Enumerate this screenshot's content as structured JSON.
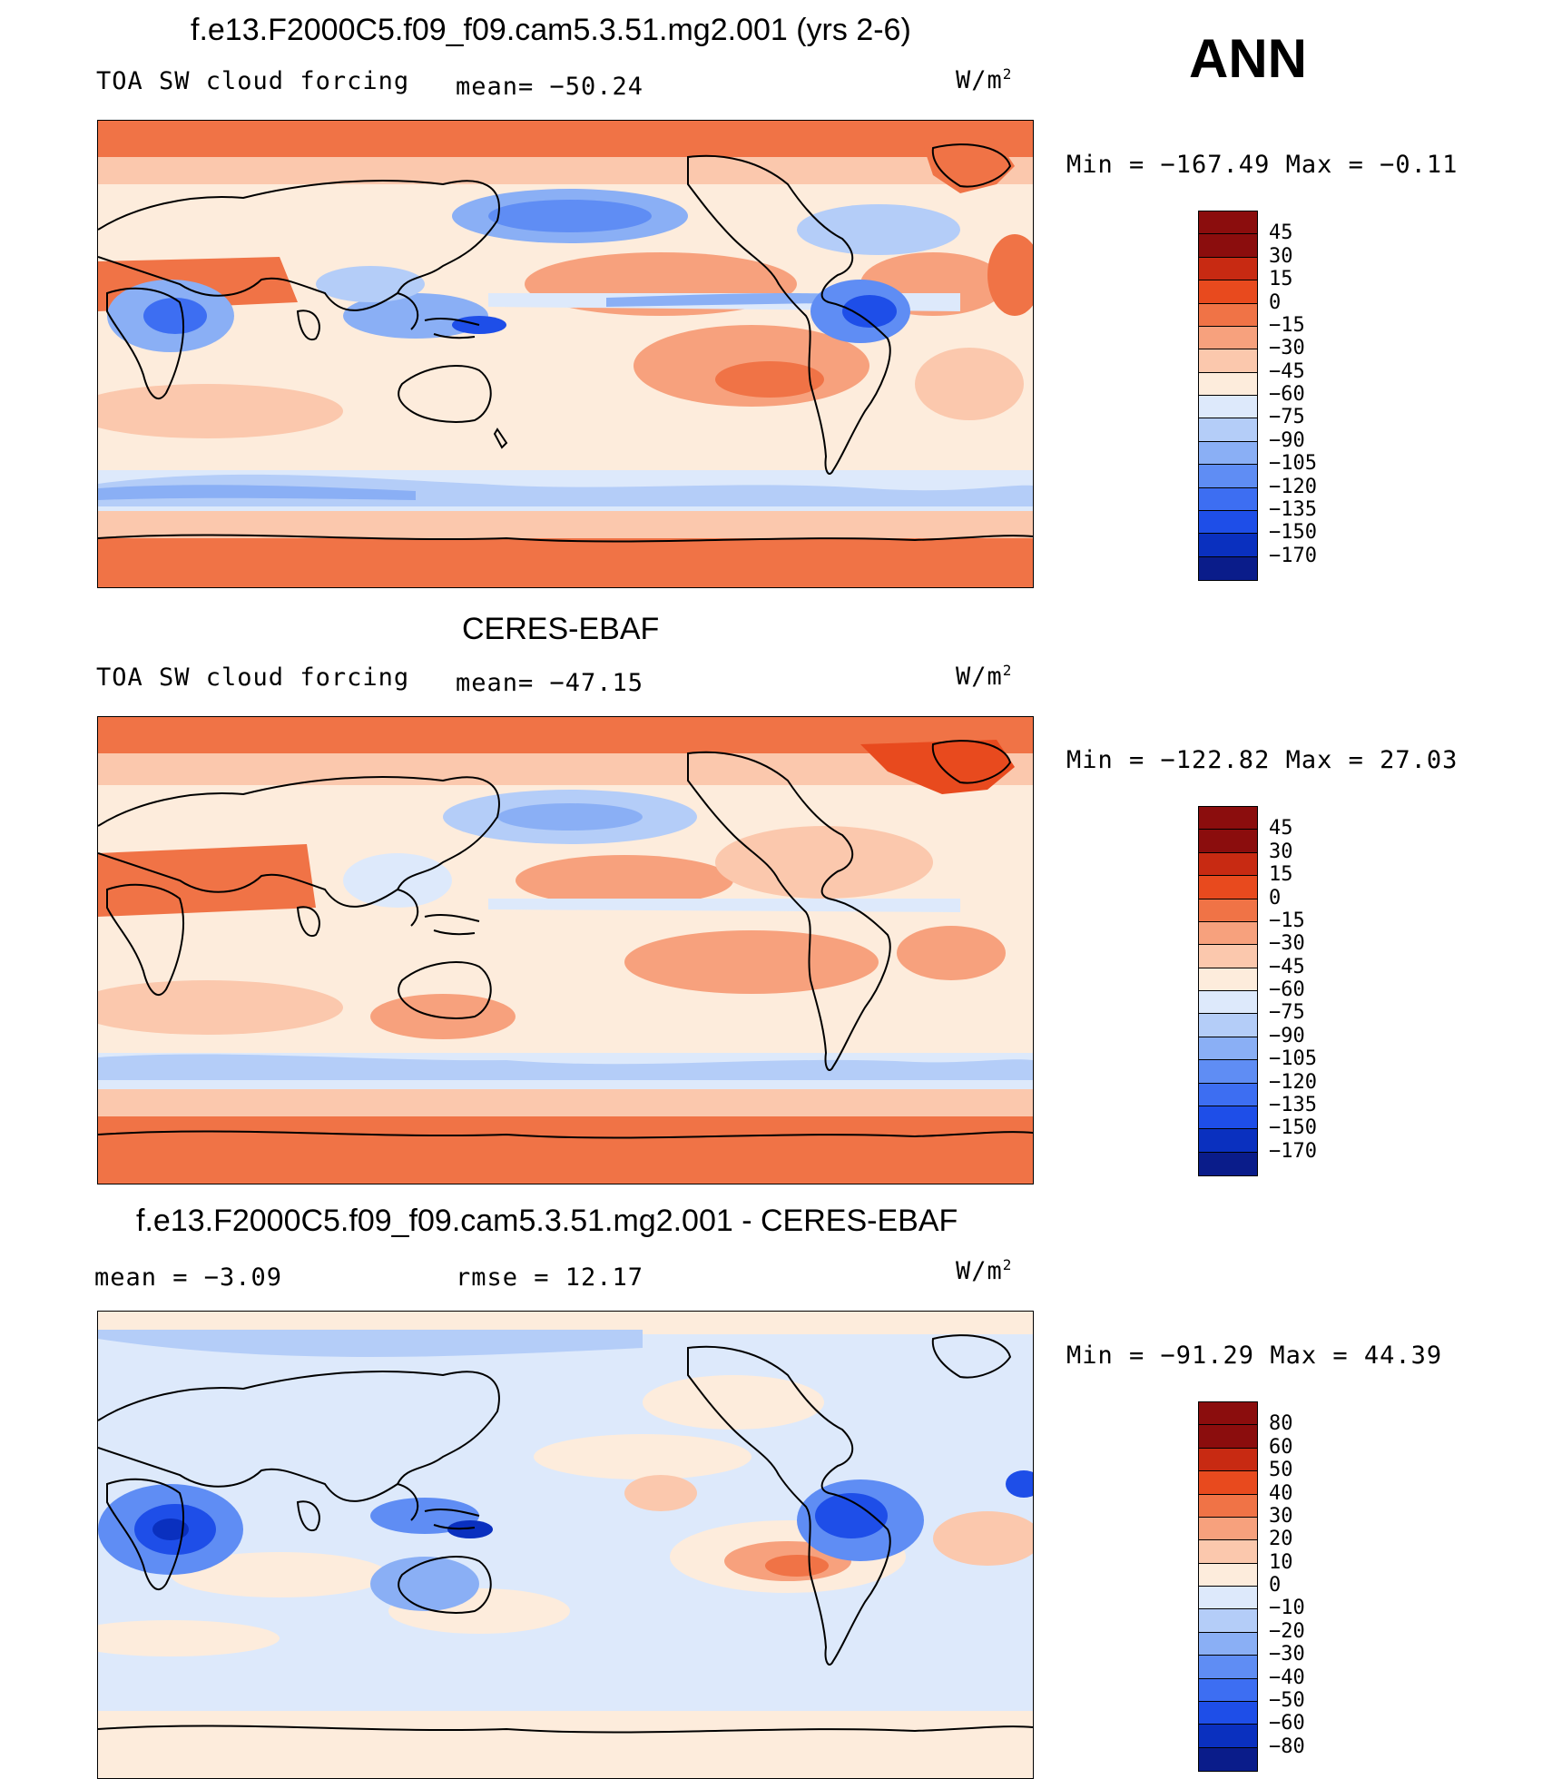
{
  "season": "ANN",
  "colors": {
    "scale12": [
      "#0a1c8a",
      "#0a30bf",
      "#1e4ee8",
      "#3d6ef2",
      "#5f8df4",
      "#8aaff5",
      "#b4cdf8",
      "#dde9fb",
      "#fdecdc",
      "#fbc8ad",
      "#f7a17d",
      "#f07346",
      "#e84a1e",
      "#c82a12",
      "#8b0d0d"
    ]
  },
  "panels": [
    {
      "id": "model",
      "title": "f.e13.F2000C5.f09_f09.cam5.3.51.mg2.001 (yrs 2-6)",
      "left_label": "TOA SW cloud forcing",
      "center_label": "mean= −50.24",
      "units_label": "W/m",
      "units_sup": "2",
      "stats": "Min = −167.49 Max =  −0.11",
      "colorbar_ticks": [
        "45",
        "30",
        "15",
        "0",
        "−15",
        "−30",
        "−45",
        "−60",
        "−75",
        "−90",
        "−105",
        "−120",
        "−135",
        "−150",
        "−170"
      ]
    },
    {
      "id": "obs",
      "title": "CERES-EBAF",
      "left_label": "TOA SW cloud forcing",
      "center_label": "mean= −47.15",
      "units_label": "W/m",
      "units_sup": "2",
      "stats": "Min = −122.82 Max =  27.03",
      "colorbar_ticks": [
        "45",
        "30",
        "15",
        "0",
        "−15",
        "−30",
        "−45",
        "−60",
        "−75",
        "−90",
        "−105",
        "−120",
        "−135",
        "−150",
        "−170"
      ]
    },
    {
      "id": "diff",
      "title": "f.e13.F2000C5.f09_f09.cam5.3.51.mg2.001 - CERES-EBAF",
      "left_label": "mean =  −3.09",
      "center_label": "rmse =  12.17",
      "units_label": "W/m",
      "units_sup": "2",
      "stats": "Min = −91.29 Max =  44.39",
      "colorbar_ticks": [
        "80",
        "60",
        "50",
        "40",
        "30",
        "20",
        "10",
        "0",
        "−10",
        "−20",
        "−30",
        "−40",
        "−50",
        "−60",
        "−80"
      ]
    }
  ],
  "chart_data": [
    {
      "type": "heatmap",
      "title": "f.e13.F2000C5.f09_f09.cam5.3.51.mg2.001 (yrs 2-6)",
      "variable": "TOA SW cloud forcing",
      "units": "W/m2",
      "mean": -50.24,
      "min": -167.49,
      "max": -0.11,
      "levels": [
        -170,
        -150,
        -135,
        -120,
        -105,
        -90,
        -75,
        -60,
        -45,
        -30,
        -15,
        0,
        15,
        30,
        45
      ]
    },
    {
      "type": "heatmap",
      "title": "CERES-EBAF",
      "variable": "TOA SW cloud forcing",
      "units": "W/m2",
      "mean": -47.15,
      "min": -122.82,
      "max": 27.03,
      "levels": [
        -170,
        -150,
        -135,
        -120,
        -105,
        -90,
        -75,
        -60,
        -45,
        -30,
        -15,
        0,
        15,
        30,
        45
      ]
    },
    {
      "type": "heatmap",
      "title": "f.e13.F2000C5.f09_f09.cam5.3.51.mg2.001 - CERES-EBAF",
      "units": "W/m2",
      "mean": -3.09,
      "rmse": 12.17,
      "min": -91.29,
      "max": 44.39,
      "levels": [
        -80,
        -60,
        -50,
        -40,
        -30,
        -20,
        -10,
        0,
        10,
        20,
        30,
        40,
        50,
        60,
        80
      ]
    }
  ]
}
